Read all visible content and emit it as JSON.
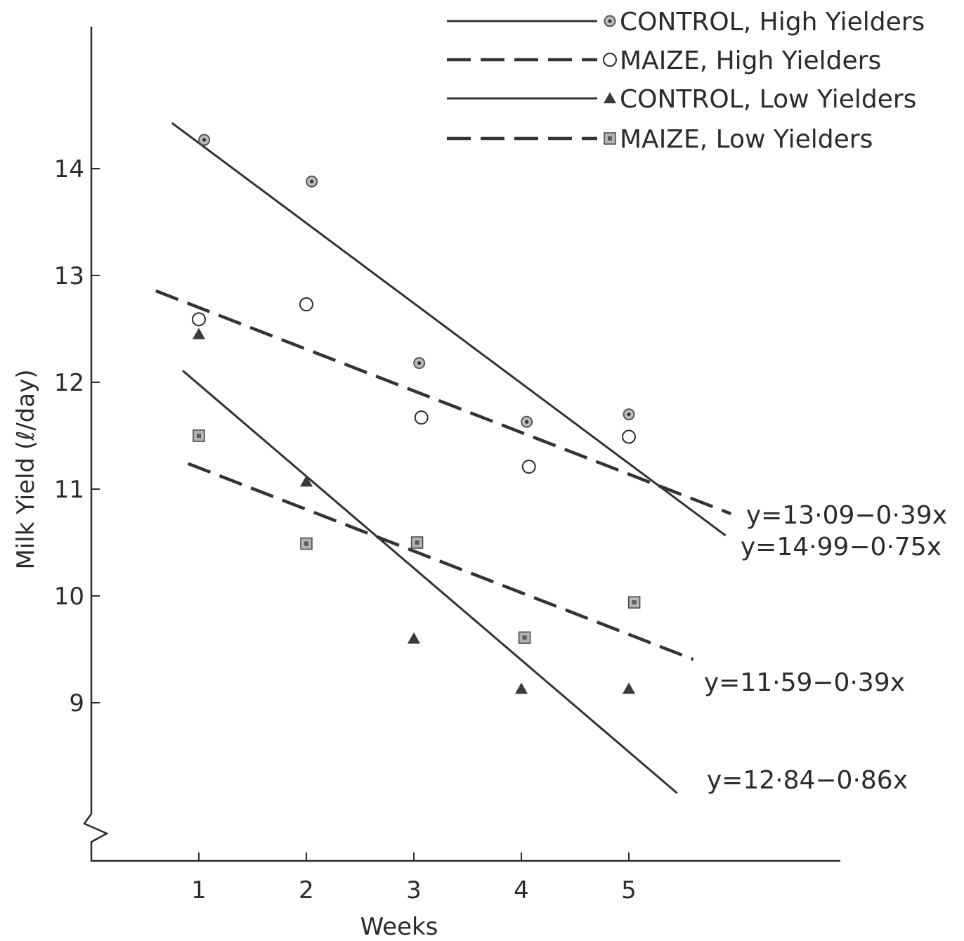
{
  "chart_data": {
    "type": "scatter",
    "xlabel": "Weeks",
    "ylabel": "Milk Yield (ℓ/day)",
    "x_ticks": [
      "1",
      "2",
      "3",
      "4",
      "5"
    ],
    "y_ticks": [
      "9",
      "10",
      "11",
      "12",
      "13",
      "14"
    ],
    "xlim": [
      0,
      6
    ],
    "ylim": [
      8,
      15
    ],
    "y_axis_break": true,
    "grid": false,
    "legend_position": "top-right",
    "series": [
      {
        "name": "CONTROL, High Yielders",
        "marker": "dotted-circle",
        "line": "solid",
        "points": [
          [
            1.05,
            14.27
          ],
          [
            2.05,
            13.88
          ],
          [
            3.05,
            12.18
          ],
          [
            4.05,
            11.63
          ],
          [
            5.0,
            11.7
          ]
        ],
        "fit": {
          "equation": "y=14·99−0·75x",
          "intercept": 14.99,
          "slope": -0.75,
          "x_range": [
            0.75,
            5.9
          ]
        }
      },
      {
        "name": "MAIZE, High Yielders",
        "marker": "open-circle",
        "line": "dashed",
        "points": [
          [
            1.0,
            12.59
          ],
          [
            2.0,
            12.73
          ],
          [
            3.07,
            11.67
          ],
          [
            4.07,
            11.21
          ],
          [
            5.0,
            11.49
          ]
        ],
        "fit": {
          "equation": "y=13·09−0·39x",
          "intercept": 13.09,
          "slope": -0.39,
          "x_range": [
            0.6,
            5.95
          ]
        }
      },
      {
        "name": "CONTROL, Low Yielders",
        "marker": "triangle",
        "line": "solid",
        "points": [
          [
            1.0,
            12.45
          ],
          [
            2.0,
            11.07
          ],
          [
            3.0,
            9.6
          ],
          [
            4.0,
            9.13
          ],
          [
            5.0,
            9.13
          ]
        ],
        "fit": {
          "equation": "y=12·84−0·86x",
          "intercept": 12.84,
          "slope": -0.86,
          "x_range": [
            0.85,
            5.45
          ]
        }
      },
      {
        "name": "MAIZE, Low Yielders",
        "marker": "square",
        "line": "dashed",
        "points": [
          [
            1.0,
            11.5
          ],
          [
            2.0,
            10.49
          ],
          [
            3.03,
            10.5
          ],
          [
            4.03,
            9.61
          ],
          [
            5.05,
            9.94
          ]
        ],
        "fit": {
          "equation": "y=11·59−0·39x",
          "intercept": 11.59,
          "slope": -0.39,
          "x_range": [
            0.9,
            5.6
          ]
        }
      }
    ]
  }
}
